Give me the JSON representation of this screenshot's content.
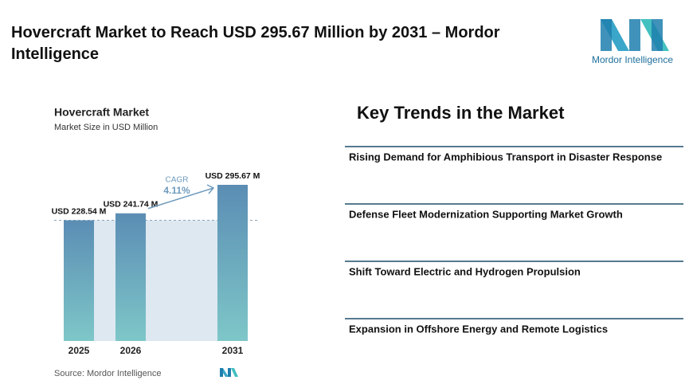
{
  "header": {
    "title": "Hovercraft Market to Reach USD 295.67 Million by 2031 – Mordor Intelligence",
    "logo_text": "Mordor Intelligence"
  },
  "chart_data": {
    "type": "bar",
    "title": "Hovercraft Market",
    "subtitle": "Market Size in USD Million",
    "categories": [
      "2025",
      "2026",
      "2031"
    ],
    "values": [
      228.54,
      241.74,
      295.67
    ],
    "value_labels": [
      "USD 228.54 M",
      "USD 241.74 M",
      "USD 295.67 M"
    ],
    "color": "#5b8db4",
    "annotation_label": "CAGR",
    "annotation_value": "4.11%",
    "source": "Source: Mordor Intelligence"
  },
  "key_trends": {
    "title": "Key Trends in the Market",
    "items": [
      "Rising Demand for Amphibious Transport in Disaster Response",
      "Defense Fleet Modernization Supporting Market Growth",
      "Shift Toward Electric and Hydrogen Propulsion",
      "Expansion in Offshore Energy and Remote Logistics"
    ]
  }
}
